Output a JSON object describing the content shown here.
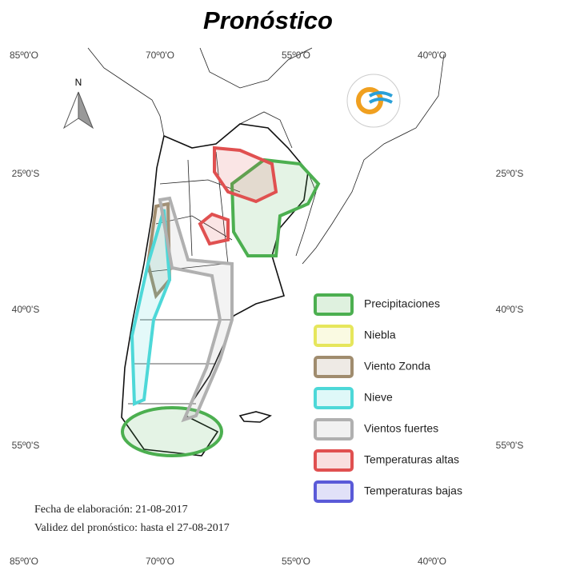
{
  "title": "Pronóstico",
  "north_label": "N",
  "coordinates": {
    "top": [
      "85º0'O",
      "70º0'O",
      "55º0'O",
      "40º0'O"
    ],
    "bottom": [
      "85º0'O",
      "70º0'O",
      "55º0'O",
      "40º0'O"
    ],
    "left": [
      "25º0'S",
      "40º0'S",
      "55º0'S"
    ],
    "right": [
      "25º0'S",
      "40º0'S",
      "55º0'S"
    ]
  },
  "legend": [
    {
      "label": "Precipitaciones",
      "color": "#4caf50"
    },
    {
      "label": "Niebla",
      "color": "#e6e65c"
    },
    {
      "label": "Viento Zonda",
      "color": "#a08c6e"
    },
    {
      "label": "Nieve",
      "color": "#4dd8d8"
    },
    {
      "label": "Vientos fuertes",
      "color": "#b0b0b0"
    },
    {
      "label": "Temperaturas altas",
      "color": "#e05050"
    },
    {
      "label": "Temperaturas bajas",
      "color": "#5a5ad8"
    }
  ],
  "footer": {
    "elaboracion": "Fecha de elaboración: 21-08-2017",
    "validez": "Validez del pronóstico: hasta el 27-08-2017"
  }
}
